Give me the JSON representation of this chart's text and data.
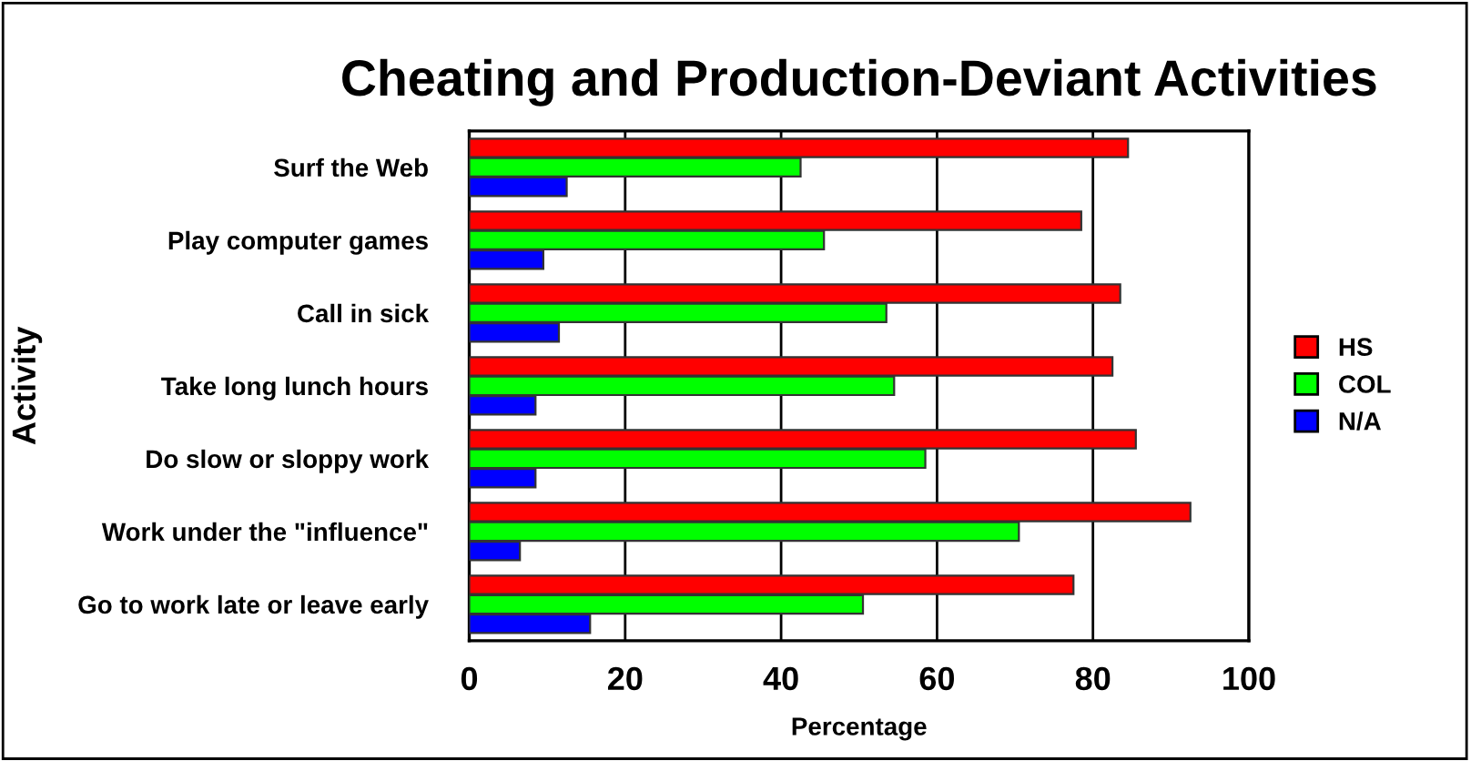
{
  "chart_data": {
    "type": "bar",
    "orientation": "horizontal",
    "title": "Cheating and Production-Deviant Activities",
    "xlabel": "Percentage",
    "ylabel": "Activity",
    "categories": [
      "Surf the Web",
      "Play computer games",
      "Call in sick",
      "Take long lunch hours",
      "Do slow or sloppy work",
      "Work under the \"influence\"",
      "Go to work late or leave early"
    ],
    "series": [
      {
        "name": "HS",
        "color": "#ff0000",
        "values": [
          84.5,
          78.5,
          83.5,
          82.5,
          85.5,
          92.5,
          77.5
        ]
      },
      {
        "name": "COL",
        "color": "#00ff00",
        "values": [
          42.5,
          45.5,
          53.5,
          54.5,
          58.5,
          70.5,
          50.5
        ]
      },
      {
        "name": "N/A",
        "color": "#0000ff",
        "values": [
          12.5,
          9.5,
          11.5,
          8.5,
          8.5,
          6.5,
          15.5
        ]
      }
    ],
    "xlim": [
      0,
      100
    ],
    "xticks": [
      0,
      20,
      40,
      60,
      80,
      100
    ],
    "grid": "x",
    "legend": "right"
  }
}
